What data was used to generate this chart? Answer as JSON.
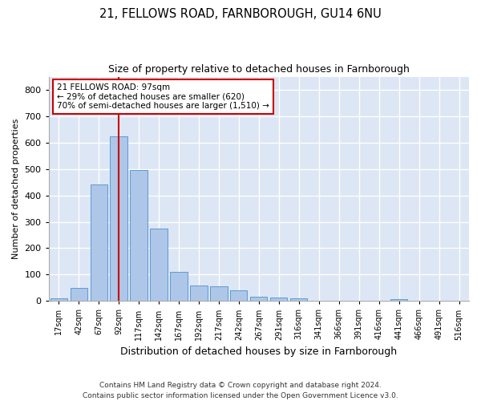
{
  "title_line1": "21, FELLOWS ROAD, FARNBOROUGH, GU14 6NU",
  "title_line2": "Size of property relative to detached houses in Farnborough",
  "xlabel": "Distribution of detached houses by size in Farnborough",
  "ylabel": "Number of detached properties",
  "footnote": "Contains HM Land Registry data © Crown copyright and database right 2024.\nContains public sector information licensed under the Open Government Licence v3.0.",
  "bin_labels": [
    "17sqm",
    "42sqm",
    "67sqm",
    "92sqm",
    "117sqm",
    "142sqm",
    "167sqm",
    "192sqm",
    "217sqm",
    "242sqm",
    "267sqm",
    "291sqm",
    "316sqm",
    "341sqm",
    "366sqm",
    "391sqm",
    "416sqm",
    "441sqm",
    "466sqm",
    "491sqm",
    "516sqm"
  ],
  "bar_values": [
    10,
    50,
    440,
    625,
    495,
    275,
    110,
    60,
    55,
    40,
    15,
    13,
    10,
    0,
    0,
    0,
    0,
    7,
    0,
    0,
    0
  ],
  "bar_color": "#aec6e8",
  "bar_edge_color": "#5b9bd5",
  "fig_bg_color": "#ffffff",
  "plot_bg_color": "#dce6f5",
  "grid_color": "#ffffff",
  "vline_x_index": 3,
  "vline_color": "#cc0000",
  "annotation_text": "21 FELLOWS ROAD: 97sqm\n← 29% of detached houses are smaller (620)\n70% of semi-detached houses are larger (1,510) →",
  "annotation_box_color": "#ffffff",
  "annotation_box_edge": "#cc0000",
  "ylim": [
    0,
    850
  ],
  "yticks": [
    0,
    100,
    200,
    300,
    400,
    500,
    600,
    700,
    800
  ],
  "bar_width": 0.85
}
